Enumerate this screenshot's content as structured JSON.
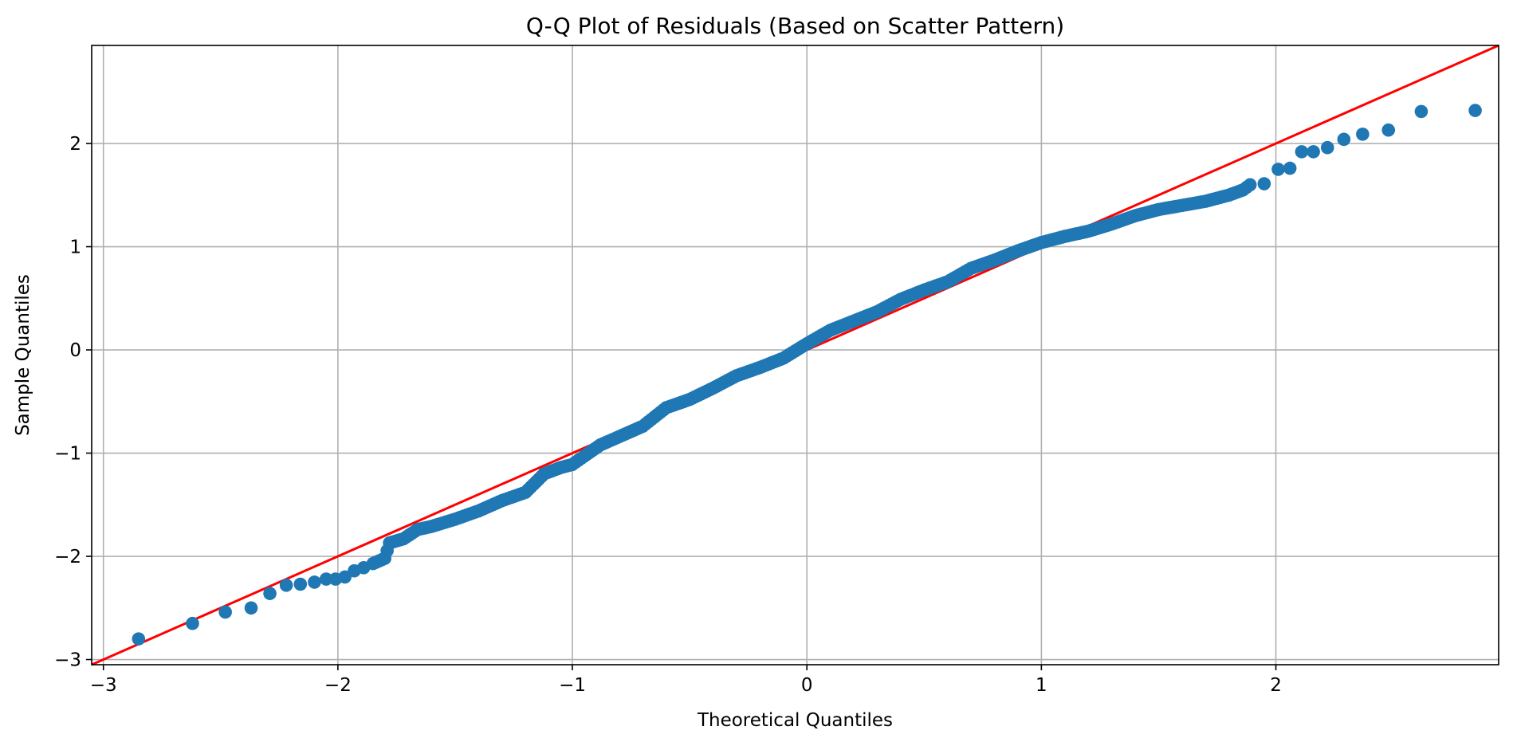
{
  "chart_data": {
    "type": "scatter",
    "title": "Q-Q Plot of Residuals (Based on Scatter Pattern)",
    "xlabel": "Theoretical Quantiles",
    "ylabel": "Sample Quantiles",
    "xlim": [
      -3.05,
      2.95
    ],
    "ylim": [
      -3.05,
      2.95
    ],
    "x_ticks": [
      -3,
      -2,
      -1,
      0,
      1,
      2
    ],
    "y_ticks": [
      -3,
      -2,
      -1,
      0,
      1,
      2
    ],
    "x_tick_labels": [
      "−3",
      "−2",
      "−1",
      "0",
      "1",
      "2"
    ],
    "y_tick_labels": [
      "−3",
      "−2",
      "−1",
      "0",
      "1",
      "2"
    ],
    "grid": true,
    "point_color": "#1f77b4",
    "line_color": "#ff0000",
    "reference_line": {
      "slope": 1,
      "intercept": 0
    },
    "anchors": [
      [
        -2.85,
        -2.8
      ],
      [
        -2.62,
        -2.65
      ],
      [
        -2.48,
        -2.54
      ],
      [
        -2.37,
        -2.5
      ],
      [
        -2.29,
        -2.36
      ],
      [
        -2.22,
        -2.28
      ],
      [
        -2.16,
        -2.27
      ],
      [
        -2.1,
        -2.25
      ],
      [
        -2.05,
        -2.22
      ],
      [
        -2.01,
        -2.22
      ],
      [
        -1.97,
        -2.2
      ],
      [
        -1.93,
        -2.14
      ],
      [
        -1.89,
        -2.11
      ],
      [
        -1.85,
        -2.07
      ],
      [
        -1.8,
        -2.02
      ],
      [
        -1.78,
        -1.87
      ],
      [
        -1.72,
        -1.83
      ],
      [
        -1.66,
        -1.74
      ],
      [
        -1.6,
        -1.71
      ],
      [
        -1.5,
        -1.64
      ],
      [
        -1.4,
        -1.56
      ],
      [
        -1.3,
        -1.46
      ],
      [
        -1.2,
        -1.38
      ],
      [
        -1.12,
        -1.2
      ],
      [
        -1.05,
        -1.14
      ],
      [
        -1.0,
        -1.11
      ],
      [
        -0.95,
        -1.03
      ],
      [
        -0.88,
        -0.92
      ],
      [
        -0.8,
        -0.84
      ],
      [
        -0.7,
        -0.74
      ],
      [
        -0.6,
        -0.56
      ],
      [
        -0.5,
        -0.48
      ],
      [
        -0.4,
        -0.37
      ],
      [
        -0.3,
        -0.25
      ],
      [
        -0.2,
        -0.17
      ],
      [
        -0.1,
        -0.08
      ],
      [
        0.0,
        0.06
      ],
      [
        0.1,
        0.19
      ],
      [
        0.2,
        0.28
      ],
      [
        0.3,
        0.37
      ],
      [
        0.4,
        0.49
      ],
      [
        0.5,
        0.58
      ],
      [
        0.6,
        0.66
      ],
      [
        0.7,
        0.79
      ],
      [
        0.8,
        0.87
      ],
      [
        0.9,
        0.96
      ],
      [
        1.0,
        1.04
      ],
      [
        1.1,
        1.1
      ],
      [
        1.2,
        1.15
      ],
      [
        1.3,
        1.22
      ],
      [
        1.4,
        1.3
      ],
      [
        1.5,
        1.36
      ],
      [
        1.6,
        1.4
      ],
      [
        1.7,
        1.44
      ],
      [
        1.8,
        1.5
      ],
      [
        1.86,
        1.55
      ],
      [
        1.89,
        1.6
      ],
      [
        1.95,
        1.61
      ],
      [
        2.01,
        1.75
      ],
      [
        2.06,
        1.76
      ],
      [
        2.11,
        1.92
      ],
      [
        2.16,
        1.92
      ],
      [
        2.22,
        1.96
      ],
      [
        2.29,
        2.04
      ],
      [
        2.37,
        2.09
      ],
      [
        2.48,
        2.13
      ],
      [
        2.62,
        2.31
      ],
      [
        2.85,
        2.32
      ]
    ]
  }
}
